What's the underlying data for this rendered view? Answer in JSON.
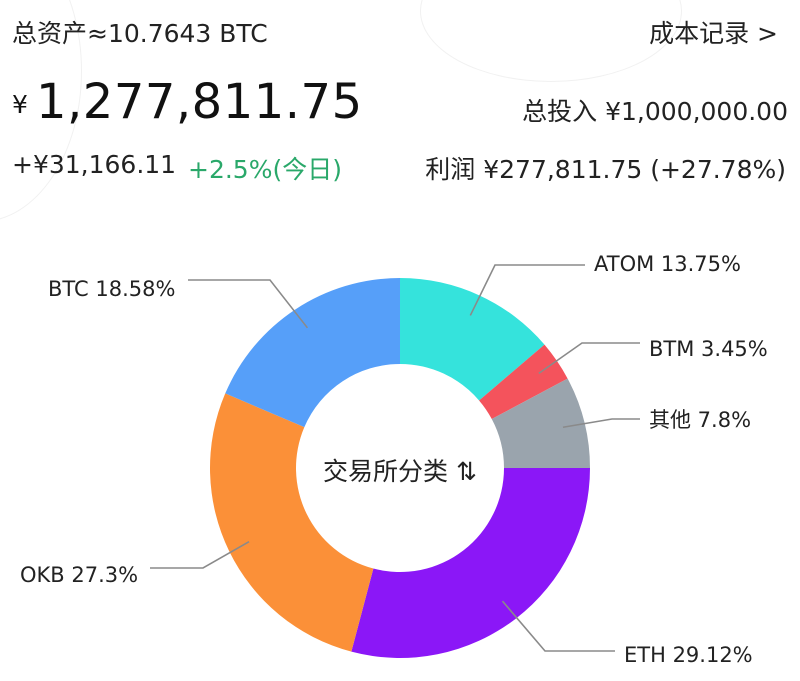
{
  "header": {
    "total_assets_label": "总资产≈10.7643 BTC",
    "cost_record_link": "成本记录 >",
    "currency_symbol": "¥",
    "balance": "1,277,811.75",
    "total_invest": "总投入  ¥1,000,000.00",
    "today_change": "+¥31,166.11",
    "today_pct": "+2.5%(今日)",
    "profit": "利润  ¥277,811.75 (+27.78%)"
  },
  "chart_data": {
    "type": "pie",
    "center_label": "交易所分类 ⇅",
    "slices": [
      {
        "name": "ATOM",
        "value": 13.75,
        "label": "ATOM  13.75%",
        "color": "#35e3dc"
      },
      {
        "name": "BTM",
        "value": 3.45,
        "label": "BTM  3.45%",
        "color": "#f4535c"
      },
      {
        "name": "其他",
        "value": 7.8,
        "label": "其他  7.8%",
        "color": "#9aa4ad"
      },
      {
        "name": "ETH",
        "value": 29.12,
        "label": "ETH  29.12%",
        "color": "#8b17f7"
      },
      {
        "name": "OKB",
        "value": 27.3,
        "label": "OKB  27.3%",
        "color": "#fb9038"
      },
      {
        "name": "BTC",
        "value": 18.58,
        "label": "BTC  18.58%",
        "color": "#569ff9"
      }
    ]
  }
}
